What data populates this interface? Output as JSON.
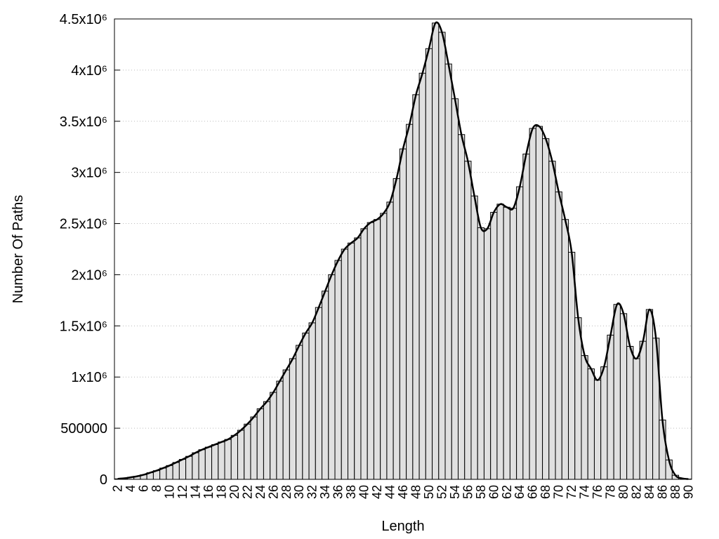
{
  "chart_data": {
    "type": "bar",
    "x_label": "Length",
    "y_label": "Number Of Paths",
    "categories": [
      "2",
      null,
      "4",
      null,
      "6",
      null,
      "8",
      null,
      "10",
      null,
      "12",
      null,
      "14",
      null,
      "16",
      null,
      "18",
      null,
      "20",
      null,
      "22",
      null,
      "24",
      null,
      "26",
      null,
      "28",
      null,
      "30",
      null,
      "32",
      null,
      "34",
      null,
      "36",
      null,
      "38",
      null,
      "40",
      null,
      "42",
      null,
      "44",
      null,
      "46",
      null,
      "48",
      null,
      "50",
      null,
      "52",
      null,
      "54",
      null,
      "56",
      null,
      "58",
      null,
      "60",
      null,
      "62",
      null,
      "64",
      null,
      "66",
      null,
      "68",
      null,
      "70",
      null,
      "72",
      null,
      "74",
      null,
      "76",
      null,
      "78",
      null,
      "80",
      null,
      "82",
      null,
      "84",
      null,
      "86",
      null,
      "88",
      null,
      "90"
    ],
    "values": [
      5000,
      10000,
      20000,
      30000,
      45000,
      65000,
      85000,
      110000,
      135000,
      165000,
      195000,
      225000,
      260000,
      290000,
      315000,
      340000,
      365000,
      390000,
      430000,
      480000,
      540000,
      610000,
      690000,
      760000,
      850000,
      960000,
      1070000,
      1180000,
      1310000,
      1430000,
      1530000,
      1680000,
      1840000,
      2000000,
      2140000,
      2250000,
      2310000,
      2360000,
      2450000,
      2510000,
      2540000,
      2600000,
      2710000,
      2940000,
      3230000,
      3470000,
      3760000,
      3970000,
      4210000,
      4460000,
      4370000,
      4060000,
      3720000,
      3370000,
      3110000,
      2770000,
      2460000,
      2450000,
      2610000,
      2690000,
      2660000,
      2650000,
      2860000,
      3180000,
      3430000,
      3450000,
      3330000,
      3110000,
      2810000,
      2540000,
      2220000,
      1580000,
      1210000,
      1080000,
      970000,
      1100000,
      1410000,
      1710000,
      1620000,
      1300000,
      1180000,
      1350000,
      1660000,
      1380000,
      580000,
      190000,
      40000,
      10000,
      3000
    ],
    "color": "#e0e0e0",
    "edge_color": "#000000",
    "smooth_line": true,
    "line_color": "#000000",
    "ylim": [
      0,
      4500000
    ],
    "yticks": [
      0,
      500000,
      {
        "value": 1000000,
        "label": "1x10⁶"
      },
      {
        "value": 1500000,
        "label": "1.5x10⁶"
      },
      {
        "value": 2000000,
        "label": "2x10⁶"
      },
      {
        "value": 2500000,
        "label": "2.5x10⁶"
      },
      {
        "value": 3000000,
        "label": "3x10⁶"
      },
      {
        "value": 3500000,
        "label": "3.5x10⁶"
      },
      {
        "value": 4000000,
        "label": "4x10⁶"
      },
      {
        "value": 4500000,
        "label": "4.5x10⁶"
      }
    ],
    "grid": true
  }
}
